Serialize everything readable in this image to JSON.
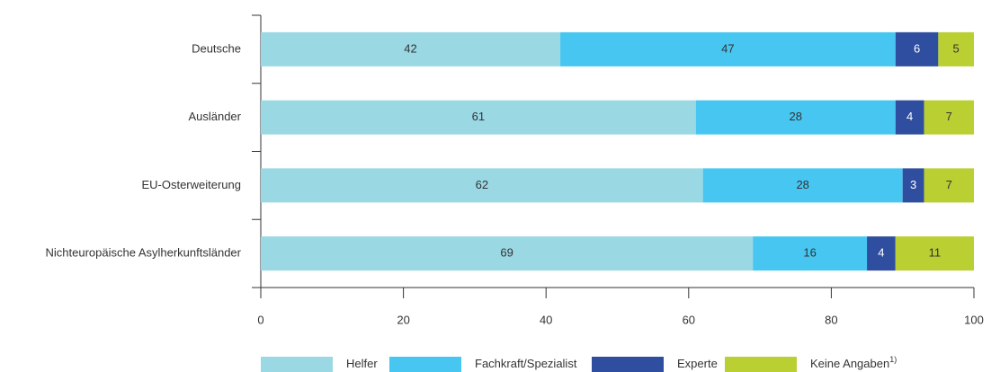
{
  "chart_data": {
    "type": "stacked_barh",
    "categories": [
      "Deutsche",
      "Ausländer",
      "EU-Osterweiterung",
      "Nichteuropäische Asylherkunftsländer"
    ],
    "series": [
      {
        "name": "Helfer",
        "color": "#9ad8e4",
        "values": [
          42,
          61,
          62,
          69
        ]
      },
      {
        "name": "Fachkraft/Spezialist",
        "color": "#47c6f1",
        "values": [
          47,
          28,
          28,
          16
        ]
      },
      {
        "name": "Experte",
        "color": "#2f4e9f",
        "values": [
          6,
          4,
          3,
          4
        ]
      },
      {
        "name": "Keine Angaben",
        "color": "#b9cf32",
        "values": [
          5,
          7,
          7,
          11
        ]
      }
    ],
    "legend_footnote": "1)",
    "xlim": [
      0,
      100
    ],
    "xticks": [
      0,
      20,
      40,
      60,
      80,
      100
    ]
  }
}
